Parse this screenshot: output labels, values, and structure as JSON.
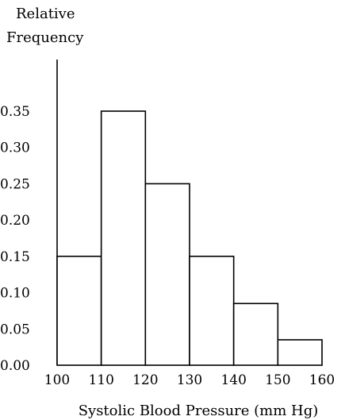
{
  "chart_data": {
    "type": "bar",
    "title": "",
    "ylabel_line1": "Relative",
    "ylabel_line2": "Frequency",
    "xlabel": "Systolic Blood Pressure (mm Hg)",
    "bins": [
      {
        "start": 100,
        "end": 110,
        "value": 0.15
      },
      {
        "start": 110,
        "end": 120,
        "value": 0.35
      },
      {
        "start": 120,
        "end": 130,
        "value": 0.25
      },
      {
        "start": 130,
        "end": 140,
        "value": 0.15
      },
      {
        "start": 140,
        "end": 150,
        "value": 0.085
      },
      {
        "start": 150,
        "end": 160,
        "value": 0.035
      }
    ],
    "x_ticks": [
      "100",
      "110",
      "120",
      "130",
      "140",
      "150",
      "160"
    ],
    "y_ticks": [
      "0.00",
      "0.05",
      "0.10",
      "0.15",
      "0.20",
      "0.25",
      "0.30",
      "0.35"
    ],
    "xlim": [
      100,
      160
    ],
    "ylim": [
      0,
      0.35
    ],
    "grid": false,
    "legend": "none"
  }
}
